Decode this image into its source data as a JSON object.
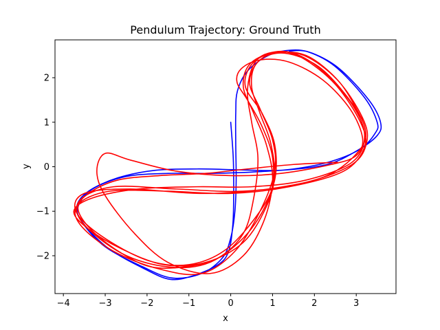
{
  "chart_data": {
    "type": "line",
    "title": "Pendulum Trajectory: Ground Truth",
    "xlabel": "x",
    "ylabel": "y",
    "xlim": [
      -4.2,
      3.95
    ],
    "ylim": [
      -2.85,
      2.85
    ],
    "xticks": [
      -4,
      -3,
      -2,
      -1,
      0,
      1,
      2,
      3
    ],
    "yticks": [
      -2,
      -1,
      0,
      1,
      2
    ],
    "grid": false,
    "legend": "none",
    "series": [
      {
        "color": "#0000ff",
        "points": [
          [
            0.0,
            1.0
          ],
          [
            0.06,
            0.2
          ],
          [
            0.07,
            -0.6
          ],
          [
            0.05,
            -1.3
          ],
          [
            -0.05,
            -1.9
          ],
          [
            -0.3,
            -2.2
          ],
          [
            -0.9,
            -2.45
          ],
          [
            -1.45,
            -2.53
          ],
          [
            -2.05,
            -2.3
          ],
          [
            -2.9,
            -1.85
          ],
          [
            -3.5,
            -1.3
          ],
          [
            -3.68,
            -0.9
          ],
          [
            -3.4,
            -0.55
          ],
          [
            -2.7,
            -0.25
          ],
          [
            -1.8,
            -0.08
          ],
          [
            -0.8,
            -0.05
          ],
          [
            0.2,
            -0.07
          ],
          [
            1.2,
            -0.08
          ],
          [
            2.3,
            0.05
          ],
          [
            3.0,
            0.35
          ],
          [
            3.5,
            0.7
          ],
          [
            3.58,
            1.0
          ],
          [
            3.3,
            1.5
          ],
          [
            2.6,
            2.2
          ],
          [
            1.95,
            2.55
          ],
          [
            1.45,
            2.62
          ],
          [
            0.9,
            2.5
          ],
          [
            0.4,
            2.15
          ],
          [
            0.16,
            1.7
          ],
          [
            0.12,
            1.2
          ],
          [
            0.12,
            0.5
          ],
          [
            0.13,
            -0.3
          ],
          [
            0.1,
            -1.0
          ],
          [
            0.0,
            -1.6
          ],
          [
            -0.2,
            -2.05
          ],
          [
            -0.7,
            -2.4
          ],
          [
            -1.4,
            -2.5
          ],
          [
            -2.1,
            -2.25
          ],
          [
            -3.0,
            -1.8
          ],
          [
            -3.55,
            -1.25
          ],
          [
            -3.65,
            -0.9
          ],
          [
            -3.3,
            -0.5
          ],
          [
            -2.5,
            -0.22
          ],
          [
            -1.5,
            -0.15
          ],
          [
            -0.5,
            -0.15
          ],
          [
            0.5,
            -0.12
          ],
          [
            1.5,
            -0.05
          ],
          [
            2.4,
            0.12
          ],
          [
            3.1,
            0.4
          ],
          [
            3.45,
            0.75
          ],
          [
            3.5,
            1.0
          ],
          [
            3.2,
            1.55
          ],
          [
            2.5,
            2.25
          ],
          [
            1.85,
            2.58
          ],
          [
            1.4,
            2.6
          ]
        ]
      },
      {
        "color": "#ff0000",
        "points": [
          [
            2.55,
            0.1
          ],
          [
            1.5,
            0.05
          ],
          [
            0.4,
            -0.05
          ],
          [
            -0.6,
            -0.15
          ],
          [
            -1.7,
            -0.2
          ],
          [
            -2.7,
            -0.3
          ],
          [
            -3.4,
            -0.6
          ],
          [
            -3.65,
            -0.95
          ],
          [
            -3.3,
            -1.45
          ],
          [
            -2.6,
            -1.95
          ],
          [
            -1.9,
            -2.25
          ],
          [
            -1.1,
            -2.25
          ],
          [
            -0.3,
            -2.05
          ],
          [
            0.3,
            -1.5
          ],
          [
            0.55,
            -0.7
          ],
          [
            0.65,
            0.2
          ],
          [
            0.5,
            1.0
          ],
          [
            0.4,
            1.7
          ],
          [
            0.55,
            2.3
          ],
          [
            0.9,
            2.55
          ],
          [
            1.5,
            2.55
          ],
          [
            2.2,
            2.15
          ],
          [
            2.9,
            1.4
          ],
          [
            3.2,
            0.7
          ],
          [
            2.9,
            0.1
          ],
          [
            1.8,
            -0.3
          ],
          [
            0.5,
            -0.45
          ],
          [
            -0.8,
            -0.45
          ],
          [
            -2.2,
            -0.5
          ],
          [
            -3.3,
            -0.7
          ],
          [
            -3.75,
            -1.0
          ],
          [
            -3.4,
            -1.4
          ],
          [
            -2.6,
            -1.85
          ],
          [
            -1.6,
            -2.2
          ],
          [
            -0.6,
            -2.15
          ],
          [
            0.3,
            -1.7
          ],
          [
            0.85,
            -0.9
          ],
          [
            1.05,
            -0.2
          ],
          [
            0.95,
            0.55
          ],
          [
            0.7,
            1.2
          ],
          [
            0.5,
            1.8
          ],
          [
            0.6,
            2.3
          ],
          [
            1.1,
            2.58
          ],
          [
            1.7,
            2.45
          ],
          [
            2.5,
            1.85
          ],
          [
            3.1,
            1.0
          ],
          [
            3.2,
            0.45
          ],
          [
            2.7,
            -0.1
          ],
          [
            1.4,
            -0.45
          ],
          [
            0.0,
            -0.6
          ],
          [
            -1.5,
            -0.55
          ],
          [
            -2.9,
            -0.55
          ],
          [
            -3.65,
            -0.85
          ],
          [
            -3.6,
            -1.3
          ],
          [
            -2.8,
            -1.9
          ],
          [
            -1.7,
            -2.3
          ],
          [
            -0.7,
            -2.4
          ],
          [
            0.1,
            -1.9
          ],
          [
            0.7,
            -1.0
          ],
          [
            1.05,
            -0.1
          ],
          [
            1.0,
            0.6
          ],
          [
            0.7,
            1.3
          ],
          [
            0.45,
            1.9
          ],
          [
            0.7,
            2.4
          ],
          [
            1.3,
            2.55
          ],
          [
            2.1,
            2.25
          ],
          [
            2.8,
            1.55
          ],
          [
            3.2,
            0.9
          ],
          [
            3.1,
            0.4
          ],
          [
            2.3,
            -0.2
          ],
          [
            0.9,
            -0.5
          ],
          [
            -0.7,
            -0.6
          ],
          [
            -2.4,
            -0.5
          ],
          [
            -3.5,
            -0.6
          ],
          [
            -3.7,
            -1.0
          ],
          [
            -3.1,
            -1.55
          ],
          [
            -2.0,
            -2.1
          ],
          [
            -1.0,
            -2.2
          ],
          [
            -0.1,
            -1.85
          ],
          [
            0.7,
            -1.0
          ],
          [
            1.05,
            -0.3
          ],
          [
            1.05,
            0.5
          ],
          [
            0.75,
            1.2
          ],
          [
            0.35,
            1.8
          ],
          [
            0.5,
            2.3
          ],
          [
            1.0,
            2.55
          ],
          [
            1.75,
            2.5
          ],
          [
            2.55,
            1.95
          ],
          [
            3.15,
            1.1
          ],
          [
            3.25,
            0.55
          ],
          [
            2.9,
            0.05
          ],
          [
            1.8,
            -0.35
          ],
          [
            0.3,
            -0.55
          ],
          [
            -1.3,
            -0.5
          ],
          [
            -2.8,
            -0.45
          ],
          [
            -3.6,
            -0.75
          ],
          [
            -3.55,
            -1.25
          ],
          [
            -2.6,
            -1.95
          ],
          [
            -1.5,
            -2.25
          ],
          [
            -0.5,
            -2.15
          ],
          [
            0.4,
            -1.5
          ],
          [
            0.95,
            -0.6
          ],
          [
            1.0,
            0.2
          ],
          [
            0.75,
            0.9
          ],
          [
            0.4,
            1.5
          ],
          [
            0.15,
            1.9
          ],
          [
            0.25,
            2.2
          ],
          [
            0.7,
            2.4
          ],
          [
            1.4,
            2.35
          ],
          [
            2.2,
            1.95
          ],
          [
            2.85,
            1.3
          ],
          [
            3.15,
            0.65
          ],
          [
            3.0,
            0.25
          ],
          [
            2.4,
            0.05
          ],
          [
            1.2,
            -0.15
          ],
          [
            0.0,
            -0.2
          ],
          [
            -1.3,
            -0.1
          ],
          [
            -2.4,
            0.15
          ],
          [
            -3.0,
            0.3
          ],
          [
            -3.2,
            -0.1
          ],
          [
            -3.0,
            -0.65
          ],
          [
            -2.3,
            -1.5
          ],
          [
            -1.5,
            -2.15
          ],
          [
            -0.5,
            -2.4
          ],
          [
            0.3,
            -2.0
          ],
          [
            0.8,
            -1.2
          ],
          [
            1.0,
            -0.3
          ],
          [
            0.85,
            0.5
          ],
          [
            0.55,
            1.2
          ],
          [
            0.3,
            1.8
          ],
          [
            0.45,
            2.3
          ],
          [
            1.0,
            2.55
          ],
          [
            1.8,
            2.5
          ],
          [
            2.6,
            1.9
          ],
          [
            3.15,
            1.05
          ]
        ]
      }
    ]
  }
}
